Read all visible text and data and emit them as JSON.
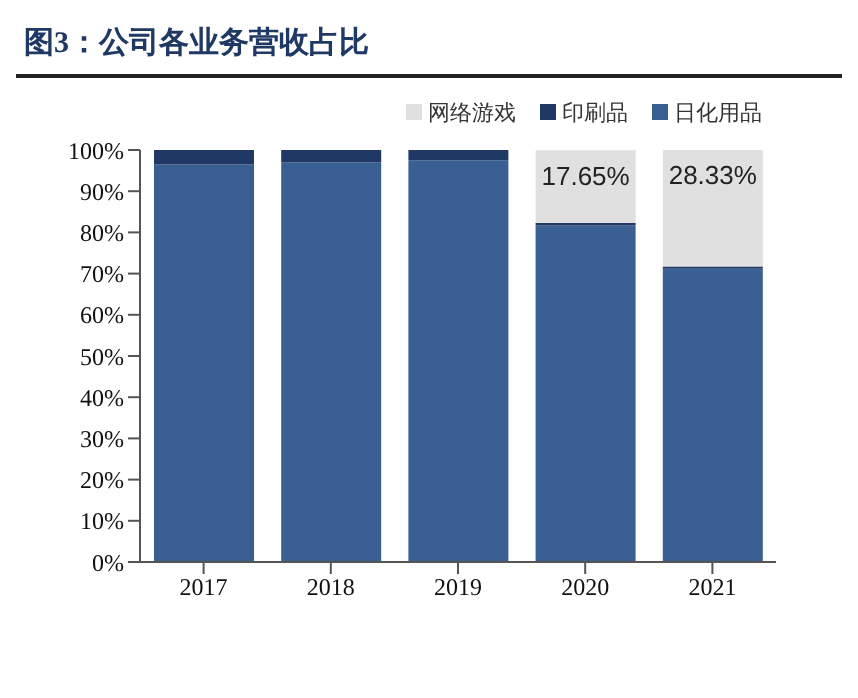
{
  "chart_data": {
    "type": "bar",
    "title": "图3：公司各业务营收占比",
    "stacked": true,
    "categories": [
      "2017",
      "2018",
      "2019",
      "2020",
      "2021"
    ],
    "series": [
      {
        "name": "日化用品",
        "color": "#3a5f92",
        "values": [
          96.5,
          97,
          97.5,
          81.7,
          71.2
        ]
      },
      {
        "name": "印刷品",
        "color": "#1f3864",
        "values": [
          3.5,
          3,
          2.5,
          0.6,
          0.5
        ]
      },
      {
        "name": "网络游戏",
        "color": "#e0e0e0",
        "values": [
          0,
          0,
          0,
          17.65,
          28.33
        ],
        "value_labels": [
          null,
          null,
          null,
          "17.65%",
          "28.33%"
        ]
      }
    ],
    "ylim": [
      0,
      100
    ],
    "yticks": [
      {
        "value": 0,
        "label": "0%"
      },
      {
        "value": 10,
        "label": "10%"
      },
      {
        "value": 20,
        "label": "20%"
      },
      {
        "value": 30,
        "label": "30%"
      },
      {
        "value": 40,
        "label": "40%"
      },
      {
        "value": 50,
        "label": "50%"
      },
      {
        "value": 60,
        "label": "60%"
      },
      {
        "value": 70,
        "label": "70%"
      },
      {
        "value": 80,
        "label": "80%"
      },
      {
        "value": 90,
        "label": "90%"
      },
      {
        "value": 100,
        "label": "100%"
      }
    ],
    "grid": false,
    "legend": "top right"
  }
}
